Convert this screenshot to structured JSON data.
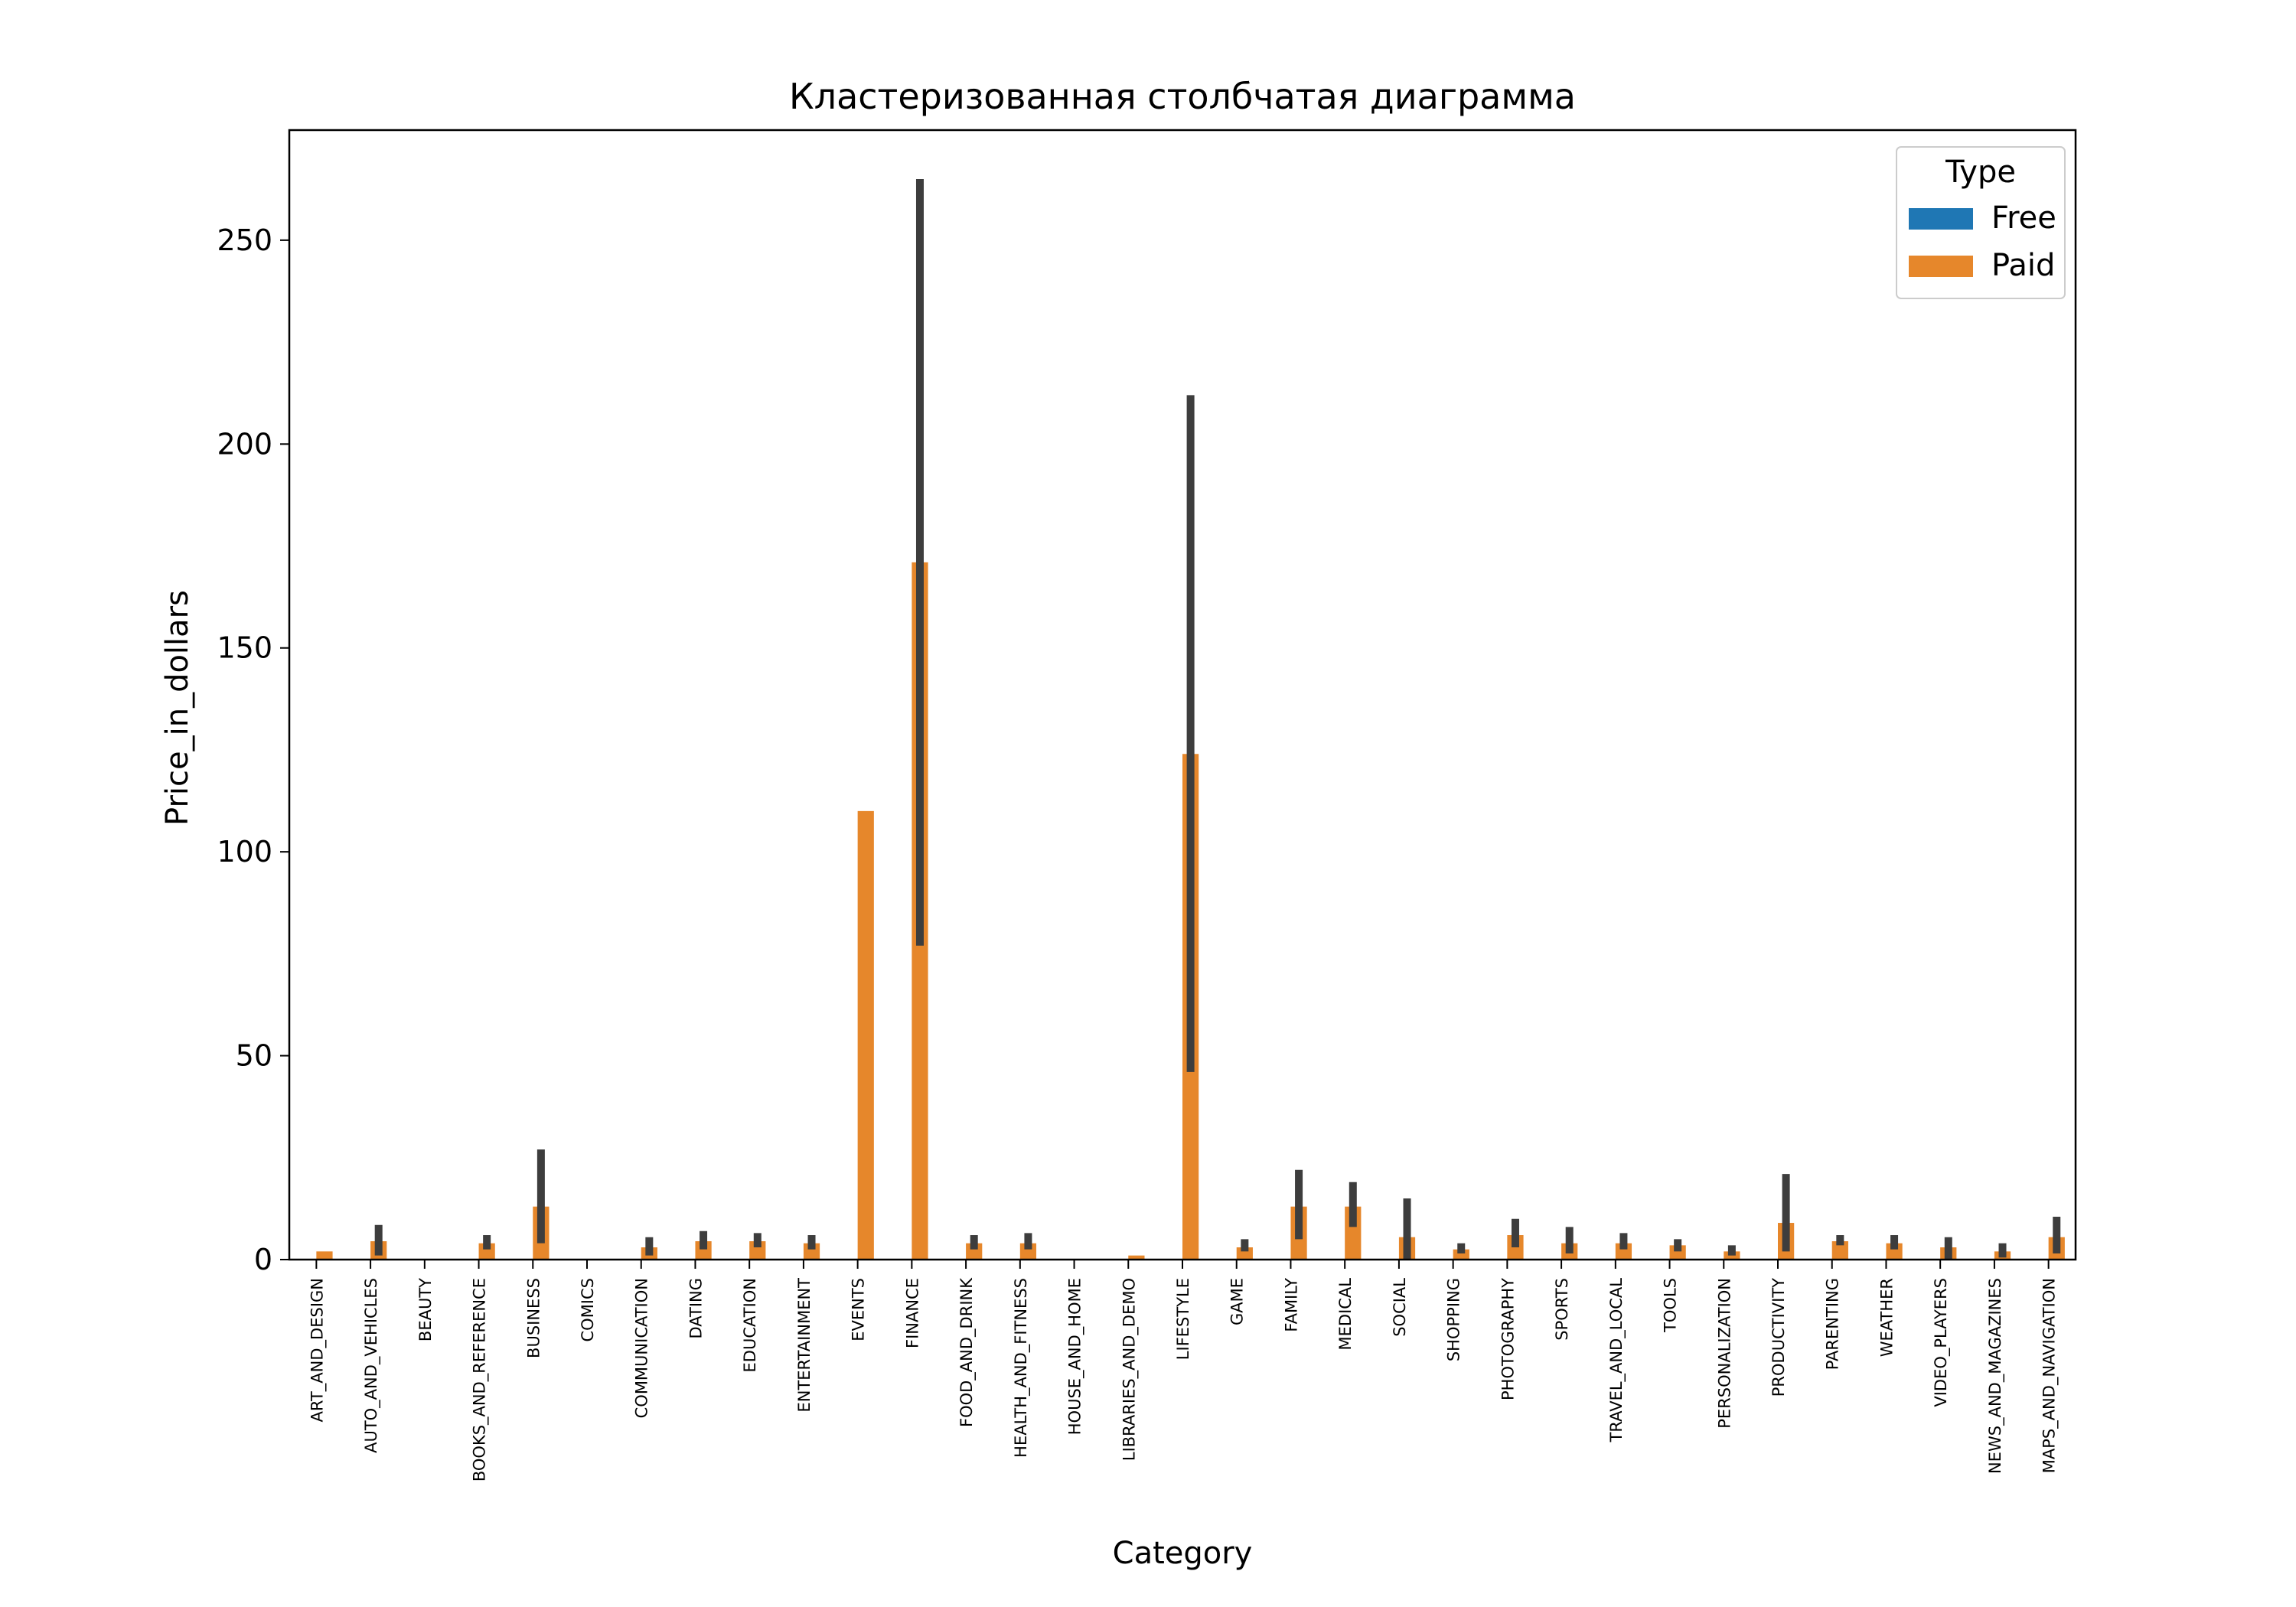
{
  "chart_data": {
    "type": "bar",
    "title": "Кластеризованная столбчатая диаграмма",
    "xlabel": "Category",
    "ylabel": "Price_in_dollars",
    "ylim": [
      0,
      277
    ],
    "yticks": [
      0,
      50,
      100,
      150,
      200,
      250
    ],
    "grid": false,
    "legend": {
      "title": "Type",
      "placement": "top-right"
    },
    "categories": [
      "ART_AND_DESIGN",
      "AUTO_AND_VEHICLES",
      "BEAUTY",
      "BOOKS_AND_REFERENCE",
      "BUSINESS",
      "COMICS",
      "COMMUNICATION",
      "DATING",
      "EDUCATION",
      "ENTERTAINMENT",
      "EVENTS",
      "FINANCE",
      "FOOD_AND_DRINK",
      "HEALTH_AND_FITNESS",
      "HOUSE_AND_HOME",
      "LIBRARIES_AND_DEMO",
      "LIFESTYLE",
      "GAME",
      "FAMILY",
      "MEDICAL",
      "SOCIAL",
      "SHOPPING",
      "PHOTOGRAPHY",
      "SPORTS",
      "TRAVEL_AND_LOCAL",
      "TOOLS",
      "PERSONALIZATION",
      "PRODUCTIVITY",
      "PARENTING",
      "WEATHER",
      "VIDEO_PLAYERS",
      "NEWS_AND_MAGAZINES",
      "MAPS_AND_NAVIGATION"
    ],
    "series": [
      {
        "name": "Free",
        "color": "#1f77b4",
        "values": [
          0,
          0,
          0,
          0,
          0,
          0,
          0,
          0,
          0,
          0,
          0,
          0,
          0,
          0,
          0,
          0,
          0,
          0,
          0,
          0,
          0,
          0,
          0,
          0,
          0,
          0,
          0,
          0,
          0,
          0,
          0,
          0,
          0
        ]
      },
      {
        "name": "Paid",
        "color": "#e6872b",
        "values": [
          2,
          4.5,
          null,
          4,
          13,
          null,
          3,
          4.5,
          4.5,
          4,
          110,
          171,
          4,
          4,
          null,
          1,
          124,
          3,
          13,
          13,
          5.5,
          2.5,
          6,
          4,
          4,
          3.5,
          2,
          9,
          4.5,
          4,
          3,
          2,
          5.5
        ],
        "ci": [
          null,
          [
            1,
            8.5
          ],
          null,
          [
            2.5,
            6
          ],
          [
            4,
            27
          ],
          null,
          [
            1,
            5.5
          ],
          [
            2.5,
            7
          ],
          [
            3,
            6.5
          ],
          [
            2.5,
            6
          ],
          null,
          [
            77,
            265
          ],
          [
            2.5,
            6
          ],
          [
            2.5,
            6.5
          ],
          null,
          null,
          [
            46,
            212
          ],
          [
            2,
            5
          ],
          [
            5,
            22
          ],
          [
            8,
            19
          ],
          [
            0,
            15
          ],
          [
            1.5,
            4
          ],
          [
            3,
            10
          ],
          [
            1.5,
            8
          ],
          [
            2.5,
            6.5
          ],
          [
            2,
            5
          ],
          [
            1,
            3.5
          ],
          [
            2,
            21
          ],
          [
            3.5,
            6
          ],
          [
            2.5,
            6
          ],
          [
            0,
            5.5
          ],
          [
            0.5,
            4
          ],
          [
            1.5,
            10.5
          ]
        ]
      }
    ]
  }
}
